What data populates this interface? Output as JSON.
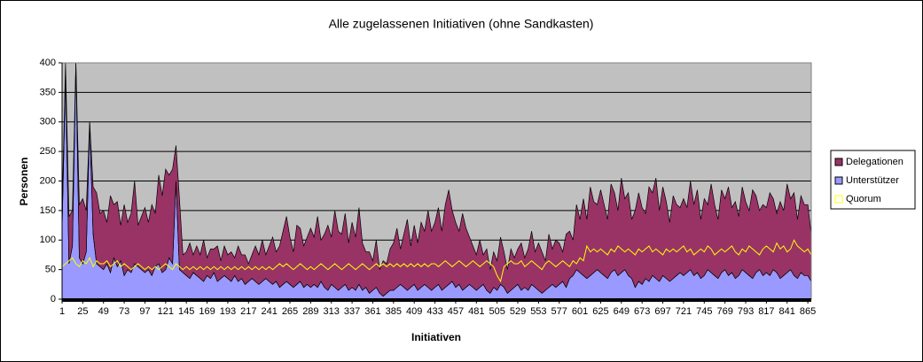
{
  "chart_data": {
    "type": "area",
    "title": "Alle zugelassenen Initiativen (ohne Sandkasten)",
    "x_label": "Initiativen",
    "y_label": "Personen",
    "x": [
      1,
      5,
      9,
      13,
      17,
      21,
      25,
      29,
      33,
      37,
      41,
      45,
      49,
      53,
      57,
      61,
      65,
      69,
      73,
      77,
      81,
      85,
      89,
      93,
      97,
      101,
      105,
      109,
      113,
      117,
      121,
      125,
      129,
      133,
      137,
      141,
      145,
      149,
      153,
      157,
      161,
      165,
      169,
      173,
      177,
      181,
      185,
      189,
      193,
      197,
      201,
      205,
      209,
      213,
      217,
      221,
      225,
      229,
      233,
      237,
      241,
      245,
      249,
      253,
      257,
      261,
      265,
      269,
      273,
      277,
      281,
      285,
      289,
      293,
      297,
      301,
      305,
      309,
      313,
      317,
      321,
      325,
      329,
      333,
      337,
      341,
      345,
      349,
      353,
      357,
      361,
      365,
      369,
      373,
      377,
      381,
      385,
      389,
      393,
      397,
      401,
      405,
      409,
      413,
      417,
      421,
      425,
      429,
      433,
      437,
      441,
      445,
      449,
      453,
      457,
      461,
      465,
      469,
      473,
      477,
      481,
      485,
      489,
      493,
      497,
      501,
      505,
      509,
      513,
      517,
      521,
      525,
      529,
      533,
      537,
      541,
      545,
      549,
      553,
      557,
      561,
      565,
      569,
      573,
      577,
      581,
      585,
      589,
      593,
      597,
      601,
      605,
      609,
      613,
      617,
      621,
      625,
      629,
      633,
      637,
      641,
      645,
      649,
      653,
      657,
      661,
      665,
      669,
      673,
      677,
      681,
      685,
      689,
      693,
      697,
      701,
      705,
      709,
      713,
      717,
      721,
      725,
      729,
      733,
      737,
      741,
      745,
      749,
      753,
      757,
      761,
      765,
      769,
      773,
      777,
      781,
      785,
      789,
      793,
      797,
      801,
      805,
      809,
      813,
      817,
      821,
      825,
      829,
      833,
      837,
      841,
      845,
      849,
      853,
      857,
      861,
      865,
      869
    ],
    "series": [
      {
        "name": "Delegationen",
        "type": "area",
        "color": "#993366",
        "values": [
          30,
          20,
          80,
          60,
          0,
          90,
          110,
          70,
          0,
          80,
          120,
          90,
          100,
          70,
          130,
          90,
          110,
          60,
          120,
          80,
          100,
          140,
          70,
          90,
          110,
          80,
          120,
          90,
          150,
          130,
          170,
          140,
          160,
          60,
          120,
          30,
          40,
          60,
          30,
          50,
          40,
          70,
          30,
          50,
          40,
          60,
          30,
          50,
          40,
          50,
          30,
          60,
          40,
          50,
          30,
          40,
          60,
          50,
          70,
          40,
          60,
          80,
          50,
          70,
          90,
          110,
          80,
          60,
          100,
          90,
          70,
          80,
          100,
          80,
          120,
          70,
          90,
          110,
          80,
          130,
          100,
          90,
          120,
          80,
          110,
          90,
          130,
          80,
          60,
          70,
          50,
          80,
          40,
          60,
          50,
          70,
          80,
          100,
          60,
          90,
          120,
          70,
          100,
          80,
          110,
          90,
          130,
          100,
          110,
          130,
          100,
          140,
          160,
          120,
          110,
          90,
          130,
          100,
          80,
          70,
          60,
          80,
          50,
          70,
          40,
          60,
          50,
          80,
          60,
          40,
          70,
          50,
          60,
          80,
          50,
          70,
          90,
          60,
          80,
          70,
          50,
          90,
          60,
          80,
          70,
          50,
          90,
          80,
          60,
          110,
          90,
          130,
          100,
          150,
          120,
          110,
          140,
          120,
          100,
          150,
          130,
          110,
          160,
          120,
          140,
          100,
          130,
          150,
          130,
          110,
          160,
          140,
          170,
          120,
          150,
          130,
          100,
          140,
          120,
          110,
          130,
          110,
          150,
          120,
          140,
          100,
          130,
          110,
          150,
          120,
          100,
          140,
          120,
          150,
          110,
          130,
          100,
          140,
          120,
          110,
          150,
          130,
          100,
          120,
          110,
          140,
          120,
          100,
          130,
          110,
          150,
          120,
          140,
          100,
          130,
          120,
          120,
          80
        ]
      },
      {
        "name": "Unterstützer",
        "type": "area",
        "color": "#9999ff",
        "values": [
          120,
          380,
          60,
          90,
          400,
          70,
          60,
          80,
          300,
          110,
          60,
          55,
          50,
          60,
          45,
          70,
          55,
          65,
          40,
          50,
          45,
          60,
          55,
          50,
          45,
          50,
          40,
          55,
          60,
          45,
          50,
          70,
          60,
          200,
          50,
          45,
          40,
          35,
          45,
          40,
          35,
          30,
          40,
          35,
          45,
          30,
          35,
          40,
          35,
          30,
          40,
          30,
          35,
          25,
          30,
          35,
          30,
          25,
          30,
          35,
          30,
          25,
          30,
          20,
          25,
          30,
          25,
          20,
          25,
          30,
          20,
          25,
          20,
          25,
          20,
          30,
          20,
          15,
          25,
          20,
          15,
          20,
          25,
          15,
          20,
          15,
          25,
          15,
          20,
          10,
          15,
          20,
          10,
          5,
          10,
          15,
          15,
          20,
          25,
          20,
          15,
          20,
          25,
          15,
          20,
          25,
          20,
          15,
          20,
          25,
          15,
          20,
          25,
          30,
          20,
          25,
          15,
          20,
          25,
          20,
          15,
          20,
          25,
          15,
          10,
          20,
          15,
          25,
          20,
          10,
          15,
          20,
          25,
          15,
          20,
          15,
          25,
          20,
          15,
          10,
          15,
          20,
          25,
          20,
          25,
          30,
          20,
          35,
          40,
          50,
          45,
          40,
          35,
          40,
          45,
          50,
          45,
          40,
          35,
          45,
          50,
          40,
          45,
          50,
          40,
          35,
          20,
          30,
          25,
          35,
          30,
          40,
          35,
          30,
          40,
          35,
          30,
          35,
          40,
          45,
          40,
          45,
          50,
          40,
          45,
          35,
          40,
          50,
          45,
          40,
          35,
          45,
          50,
          40,
          45,
          35,
          40,
          50,
          45,
          40,
          35,
          45,
          50,
          40,
          45,
          40,
          50,
          45,
          35,
          40,
          45,
          50,
          40,
          35,
          45,
          40,
          40,
          30
        ]
      },
      {
        "name": "Quorum",
        "type": "line",
        "color": "#ffff00",
        "values": [
          55,
          60,
          65,
          70,
          60,
          55,
          65,
          60,
          70,
          55,
          65,
          60,
          60,
          65,
          55,
          60,
          65,
          55,
          60,
          55,
          50,
          55,
          60,
          55,
          50,
          55,
          50,
          55,
          50,
          55,
          60,
          55,
          50,
          60,
          55,
          50,
          55,
          50,
          55,
          50,
          55,
          50,
          55,
          50,
          55,
          50,
          55,
          50,
          55,
          50,
          55,
          50,
          55,
          50,
          55,
          50,
          55,
          50,
          55,
          50,
          55,
          50,
          55,
          60,
          55,
          60,
          55,
          50,
          55,
          60,
          55,
          50,
          55,
          50,
          55,
          60,
          55,
          50,
          55,
          60,
          55,
          50,
          55,
          60,
          55,
          50,
          55,
          60,
          55,
          50,
          55,
          60,
          55,
          60,
          55,
          60,
          55,
          60,
          55,
          60,
          55,
          60,
          55,
          60,
          55,
          60,
          55,
          60,
          60,
          55,
          60,
          65,
          60,
          55,
          60,
          65,
          60,
          55,
          60,
          65,
          60,
          55,
          60,
          65,
          60,
          55,
          40,
          30,
          55,
          60,
          65,
          60,
          60,
          65,
          55,
          60,
          65,
          60,
          55,
          50,
          60,
          65,
          60,
          55,
          60,
          65,
          60,
          55,
          65,
          60,
          70,
          65,
          90,
          80,
          85,
          80,
          85,
          80,
          75,
          85,
          80,
          90,
          85,
          80,
          85,
          80,
          75,
          85,
          80,
          85,
          90,
          80,
          85,
          80,
          75,
          85,
          80,
          85,
          80,
          85,
          90,
          80,
          85,
          75,
          80,
          85,
          80,
          90,
          85,
          75,
          80,
          85,
          80,
          85,
          90,
          80,
          75,
          85,
          80,
          90,
          85,
          80,
          75,
          85,
          90,
          85,
          80,
          95,
          85,
          90,
          80,
          85,
          100,
          90,
          85,
          80,
          85,
          75
        ]
      }
    ],
    "xlim": [
      1,
      869
    ],
    "xticks": [
      1,
      25,
      49,
      73,
      97,
      121,
      145,
      169,
      193,
      217,
      241,
      265,
      289,
      313,
      337,
      361,
      385,
      409,
      433,
      457,
      481,
      505,
      529,
      553,
      577,
      601,
      625,
      649,
      673,
      697,
      721,
      745,
      769,
      793,
      817,
      841,
      865
    ],
    "ylim": [
      0,
      400
    ],
    "yticks": [
      0,
      50,
      100,
      150,
      200,
      250,
      300,
      350,
      400
    ],
    "grid": true,
    "plot_background": "#c0c0c0",
    "legend": "right"
  }
}
